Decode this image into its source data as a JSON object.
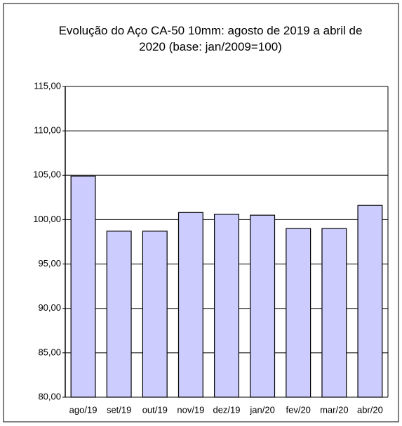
{
  "chart_data": {
    "type": "bar",
    "title": "Evolução  do Aço CA-50 10mm: agosto de 2019 a abril de 2020 (base: jan/2009=100)",
    "categories": [
      "ago/19",
      "set/19",
      "out/19",
      "nov/19",
      "dez/19",
      "jan/20",
      "fev/20",
      "mar/20",
      "abr/20"
    ],
    "values": [
      104.9,
      98.7,
      98.7,
      100.8,
      100.6,
      100.5,
      99.0,
      99.0,
      101.6
    ],
    "color": "#ccccff",
    "ylim": [
      80,
      115
    ],
    "yticks": [
      {
        "value": 80,
        "label": "80,00"
      },
      {
        "value": 85,
        "label": "85,00"
      },
      {
        "value": 90,
        "label": "90,00"
      },
      {
        "value": 95,
        "label": "95,00"
      },
      {
        "value": 100,
        "label": "100,00"
      },
      {
        "value": 105,
        "label": "105,00"
      },
      {
        "value": 110,
        "label": "110,00"
      },
      {
        "value": 115,
        "label": "115,00"
      }
    ],
    "grid": true
  }
}
